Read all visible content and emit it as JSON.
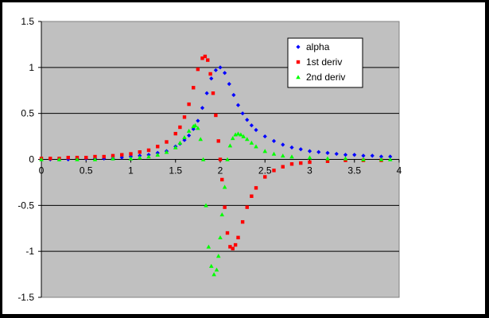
{
  "chart_data": {
    "type": "scatter",
    "title": "",
    "xlabel": "",
    "ylabel": "",
    "xlim": [
      0,
      4
    ],
    "ylim": [
      -1.5,
      1.5
    ],
    "x_ticks": [
      "0",
      "0.5",
      "1",
      "1.5",
      "2",
      "2.5",
      "3",
      "3.5",
      "4"
    ],
    "y_ticks": [
      "1.5",
      "1",
      "0.5",
      "0",
      "-0.5",
      "-1",
      "-1.5"
    ],
    "grid": "horizontal",
    "legend_position": "top-right",
    "series": [
      {
        "name": "alpha",
        "color": "#0000ff",
        "marker": "diamond",
        "x": [
          0.0,
          0.1,
          0.2,
          0.3,
          0.4,
          0.5,
          0.6,
          0.7,
          0.8,
          0.9,
          1.0,
          1.1,
          1.2,
          1.3,
          1.4,
          1.5,
          1.55,
          1.6,
          1.65,
          1.7,
          1.75,
          1.8,
          1.85,
          1.9,
          1.95,
          2.0,
          2.05,
          2.1,
          2.15,
          2.2,
          2.25,
          2.3,
          2.35,
          2.4,
          2.5,
          2.6,
          2.7,
          2.8,
          2.9,
          3.0,
          3.1,
          3.2,
          3.3,
          3.4,
          3.5,
          3.6,
          3.7,
          3.8,
          3.9
        ],
        "y": [
          0.0,
          0.0,
          0.0,
          0.0,
          0.01,
          0.01,
          0.01,
          0.01,
          0.01,
          0.02,
          0.03,
          0.04,
          0.05,
          0.07,
          0.09,
          0.14,
          0.17,
          0.21,
          0.26,
          0.33,
          0.42,
          0.56,
          0.72,
          0.88,
          0.97,
          1.0,
          0.94,
          0.82,
          0.7,
          0.59,
          0.5,
          0.43,
          0.37,
          0.32,
          0.25,
          0.2,
          0.16,
          0.13,
          0.11,
          0.09,
          0.08,
          0.07,
          0.06,
          0.05,
          0.05,
          0.04,
          0.04,
          0.03,
          0.03
        ]
      },
      {
        "name": "1st deriv",
        "color": "#ff0000",
        "marker": "square",
        "x": [
          0.0,
          0.1,
          0.2,
          0.3,
          0.4,
          0.5,
          0.6,
          0.7,
          0.8,
          0.9,
          1.0,
          1.1,
          1.2,
          1.3,
          1.4,
          1.5,
          1.55,
          1.6,
          1.65,
          1.7,
          1.75,
          1.8,
          1.83,
          1.86,
          1.89,
          1.92,
          1.95,
          1.98,
          2.0,
          2.02,
          2.05,
          2.08,
          2.11,
          2.14,
          2.17,
          2.2,
          2.25,
          2.3,
          2.35,
          2.4,
          2.5,
          2.6,
          2.7,
          2.8,
          2.9,
          3.0,
          3.2,
          3.4,
          3.6,
          3.8
        ],
        "y": [
          0.01,
          0.01,
          0.01,
          0.02,
          0.02,
          0.02,
          0.03,
          0.03,
          0.04,
          0.05,
          0.06,
          0.08,
          0.1,
          0.14,
          0.19,
          0.28,
          0.35,
          0.46,
          0.6,
          0.78,
          0.98,
          1.1,
          1.12,
          1.08,
          0.93,
          0.72,
          0.48,
          0.2,
          0.0,
          -0.22,
          -0.52,
          -0.8,
          -0.95,
          -0.97,
          -0.93,
          -0.85,
          -0.68,
          -0.52,
          -0.4,
          -0.31,
          -0.19,
          -0.12,
          -0.08,
          -0.05,
          -0.04,
          -0.03,
          -0.02,
          -0.01,
          -0.01,
          -0.01
        ]
      },
      {
        "name": "2nd deriv",
        "color": "#00ff00",
        "marker": "triangle",
        "x": [
          0.0,
          0.2,
          0.4,
          0.6,
          0.8,
          1.0,
          1.1,
          1.2,
          1.3,
          1.4,
          1.5,
          1.55,
          1.6,
          1.65,
          1.7,
          1.72,
          1.75,
          1.78,
          1.81,
          1.84,
          1.87,
          1.9,
          1.93,
          1.96,
          1.98,
          2.0,
          2.02,
          2.05,
          2.08,
          2.11,
          2.14,
          2.17,
          2.2,
          2.23,
          2.26,
          2.3,
          2.35,
          2.4,
          2.5,
          2.6,
          2.7,
          2.8,
          3.0,
          3.2,
          3.4,
          3.6,
          3.8,
          3.9
        ],
        "y": [
          0.0,
          0.0,
          0.0,
          0.0,
          0.01,
          0.01,
          0.02,
          0.03,
          0.05,
          0.08,
          0.13,
          0.18,
          0.24,
          0.31,
          0.36,
          0.37,
          0.34,
          0.22,
          0.0,
          -0.5,
          -0.95,
          -1.16,
          -1.25,
          -1.2,
          -1.05,
          -0.85,
          -0.6,
          -0.3,
          0.0,
          0.15,
          0.23,
          0.27,
          0.28,
          0.27,
          0.25,
          0.22,
          0.18,
          0.14,
          0.09,
          0.06,
          0.04,
          0.03,
          0.02,
          0.01,
          0.01,
          0.0,
          0.0,
          0.0
        ]
      }
    ]
  }
}
